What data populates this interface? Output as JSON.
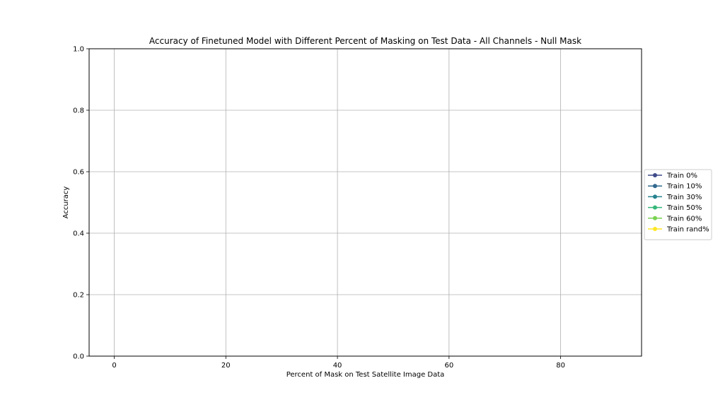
{
  "chart_data": {
    "type": "line",
    "title": "Accuracy of Finetuned Model with Different Percent of Masking on Test Data - All Channels - Null Mask",
    "xlabel": "Percent of Mask on Test Satellite Image Data",
    "ylabel": "Accuracy",
    "xlim": [
      -4.5,
      94.5
    ],
    "ylim": [
      0.0,
      1.0
    ],
    "xticks": [
      0,
      20,
      40,
      60,
      80
    ],
    "yticks": [
      0.0,
      0.2,
      0.4,
      0.6,
      0.8,
      1.0
    ],
    "grid": true,
    "legend_placement": "outside-right",
    "x": [],
    "series": [
      {
        "name": "Train 0%",
        "color": "#3e4a89",
        "values": []
      },
      {
        "name": "Train 10%",
        "color": "#31688e",
        "values": []
      },
      {
        "name": "Train 30%",
        "color": "#26828e",
        "values": []
      },
      {
        "name": "Train 50%",
        "color": "#35b779",
        "values": []
      },
      {
        "name": "Train 60%",
        "color": "#7ad151",
        "values": []
      },
      {
        "name": "Train rand%",
        "color": "#fde725",
        "values": []
      }
    ]
  }
}
